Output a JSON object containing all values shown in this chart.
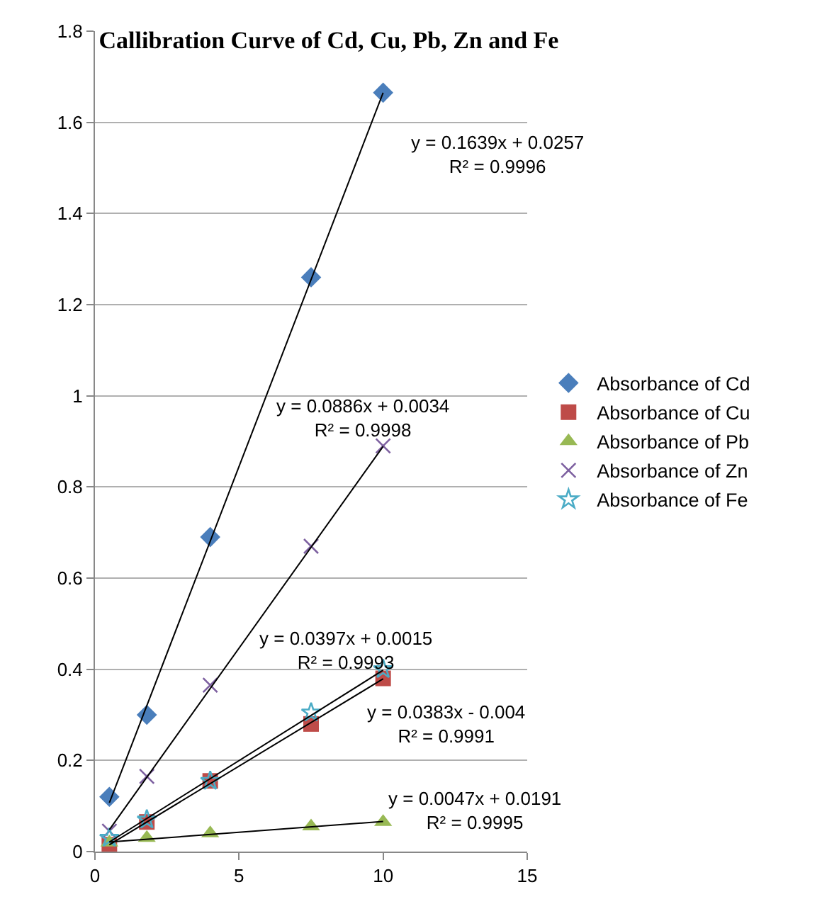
{
  "chart_data": {
    "type": "scatter",
    "title": "Callibration Curve of Cd, Cu, Pb, Zn and Fe",
    "x": [
      0.5,
      1.8,
      4,
      7.5,
      10
    ],
    "series": [
      {
        "name": "Absorbance of Cd",
        "color": "#4a7ebb",
        "marker": "diamond",
        "values": [
          0.12,
          0.3,
          0.69,
          1.26,
          1.665
        ]
      },
      {
        "name": "Absorbance of Cu",
        "color": "#be4b48",
        "marker": "square",
        "values": [
          0.015,
          0.065,
          0.155,
          0.28,
          0.38
        ]
      },
      {
        "name": "Absorbance of Pb",
        "color": "#98b954",
        "marker": "triangle",
        "values": [
          0.02,
          0.03,
          0.04,
          0.055,
          0.065
        ]
      },
      {
        "name": "Absorbance of Zn",
        "color": "#7d60a0",
        "marker": "cross",
        "values": [
          0.045,
          0.165,
          0.365,
          0.67,
          0.89
        ]
      },
      {
        "name": "Absorbance of Fe",
        "color": "#4bacc6",
        "marker": "star",
        "values": [
          0.03,
          0.07,
          0.155,
          0.305,
          0.4
        ]
      },
      {
        "type": "line",
        "color": "#000000",
        "values": [
          0.107,
          null,
          null,
          null,
          1.665
        ]
      },
      {
        "type": "line",
        "color": "#000000",
        "values": [
          0.048,
          null,
          null,
          null,
          0.889
        ]
      },
      {
        "type": "line",
        "color": "#000000",
        "values": [
          0.021,
          null,
          null,
          null,
          0.398
        ]
      },
      {
        "type": "line",
        "color": "#000000",
        "values": [
          0.015,
          null,
          null,
          null,
          0.379
        ]
      },
      {
        "type": "line",
        "color": "#000000",
        "values": [
          0.021,
          null,
          null,
          null,
          0.066
        ]
      }
    ],
    "xlim": [
      0,
      15
    ],
    "xticks": [
      0,
      5,
      10,
      15
    ],
    "ylim": [
      0,
      1.8
    ],
    "yticks": [
      0,
      0.2,
      0.4,
      0.6,
      0.8,
      1,
      1.2,
      1.4,
      1.6,
      1.8
    ],
    "grid": "y",
    "legend": "right",
    "annotations": [
      "y = 0.1639x + 0.0257\nR² = 0.9996",
      "y = 0.0886x + 0.0034\nR² = 0.9998",
      "y = 0.0397x + 0.0015\nR² = 0.9993",
      "y = 0.0383x - 0.004\nR² = 0.9991",
      "y = 0.0047x + 0.0191\nR² = 0.9995"
    ]
  }
}
